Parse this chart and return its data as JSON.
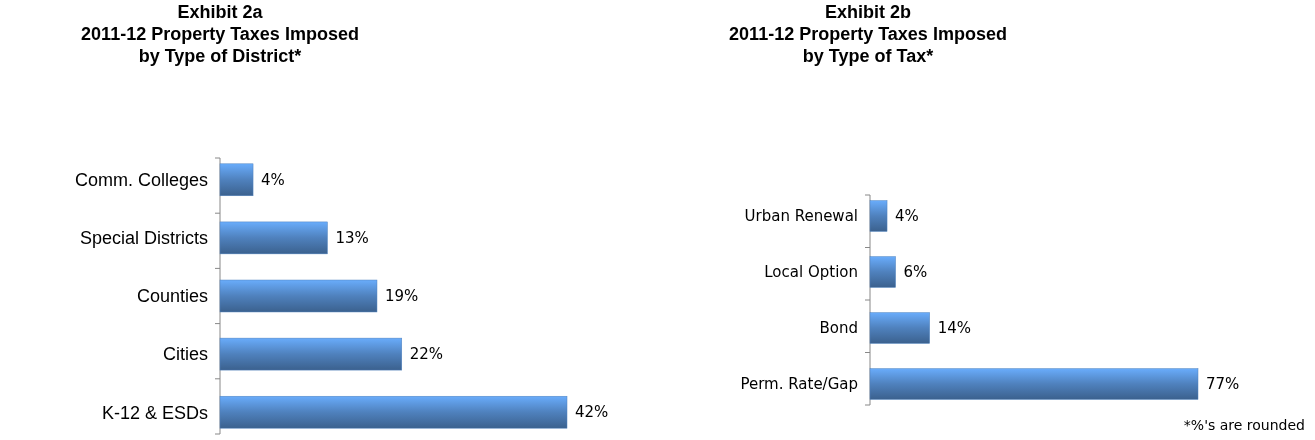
{
  "chart_data": [
    {
      "type": "bar",
      "orientation": "horizontal",
      "title": "Exhibit 2a\n2011-12 Property Taxes Imposed\nby Type of District*",
      "categories": [
        "Comm. Colleges",
        "Special Districts",
        "Counties",
        "Cities",
        "K-12 & ESDs"
      ],
      "values": [
        4,
        13,
        19,
        22,
        42
      ],
      "value_labels": [
        "4%",
        "13%",
        "19%",
        "22%",
        "42%"
      ],
      "color": "#4f81bd"
    },
    {
      "type": "bar",
      "orientation": "horizontal",
      "title": "Exhibit 2b\n2011-12 Property Taxes Imposed\nby Type of Tax*",
      "categories": [
        "Urban Renewal",
        "Local Option",
        "Bond",
        "Perm. Rate/Gap"
      ],
      "values": [
        4,
        6,
        14,
        77
      ],
      "value_labels": [
        "4%",
        "6%",
        "14%",
        "77%"
      ],
      "color": "#4f81bd",
      "annotations": [
        "*%'s are rounded"
      ]
    }
  ]
}
